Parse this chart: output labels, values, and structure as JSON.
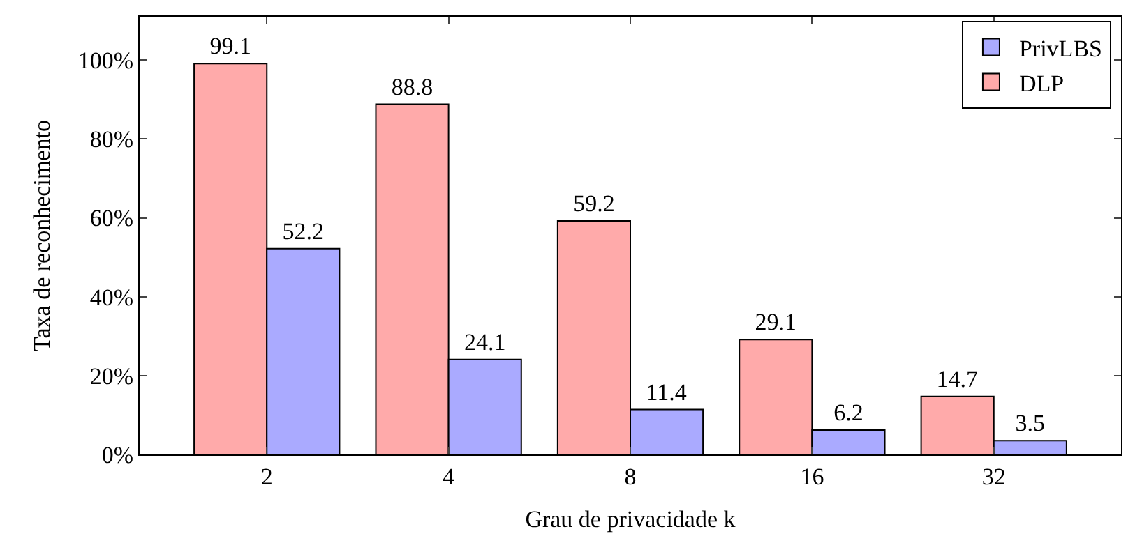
{
  "chart_data": {
    "type": "bar",
    "xlabel": "Grau de privacidade k",
    "ylabel": "Taxa de reconhecimento",
    "categories": [
      "2",
      "4",
      "8",
      "16",
      "32"
    ],
    "series": [
      {
        "name": "DLP",
        "color": "#ffaaaa",
        "values": [
          99.1,
          88.8,
          59.2,
          29.1,
          14.7
        ]
      },
      {
        "name": "PrivLBS",
        "color": "#aaaaff",
        "values": [
          52.2,
          24.1,
          11.4,
          6.2,
          3.5
        ]
      }
    ],
    "ylim": [
      0,
      111
    ],
    "yticks": [
      {
        "value": 0,
        "label": "0%"
      },
      {
        "value": 20,
        "label": "20%"
      },
      {
        "value": 40,
        "label": "40%"
      },
      {
        "value": 60,
        "label": "60%"
      },
      {
        "value": 80,
        "label": "80%"
      },
      {
        "value": 100,
        "label": "100%"
      }
    ],
    "data_labels": true,
    "legend": "top right"
  }
}
